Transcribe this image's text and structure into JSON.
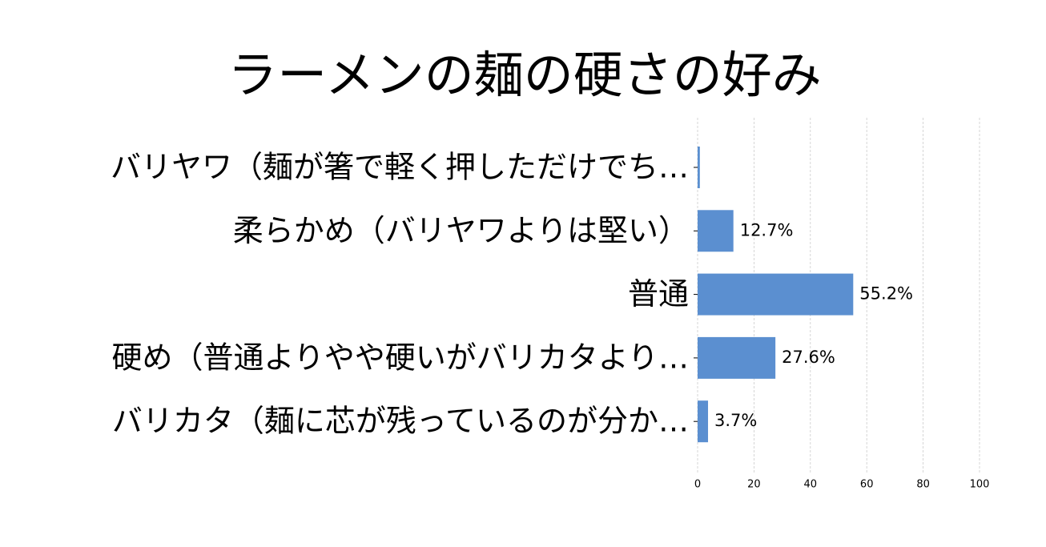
{
  "chart_data": {
    "type": "barh",
    "title": "ラーメンの麺の硬さの好み",
    "categories": [
      "バリヤワ（麺が箸で軽く押しただけでち…",
      "柔らかめ（バリヤワよりは堅い）",
      "普通",
      "硬め（普通よりやや硬いがバリカタより…",
      "バリカタ（麺に芯が残っているのが分か…"
    ],
    "values": [
      0.8,
      12.7,
      55.2,
      27.6,
      3.7
    ],
    "value_labels": [
      null,
      "12.7%",
      "55.2%",
      "27.6%",
      "3.7%"
    ],
    "color": "#5b8fd0",
    "xlim": [
      0,
      100
    ],
    "xticks": [
      0,
      20,
      40,
      60,
      80,
      100
    ],
    "grid": true
  }
}
